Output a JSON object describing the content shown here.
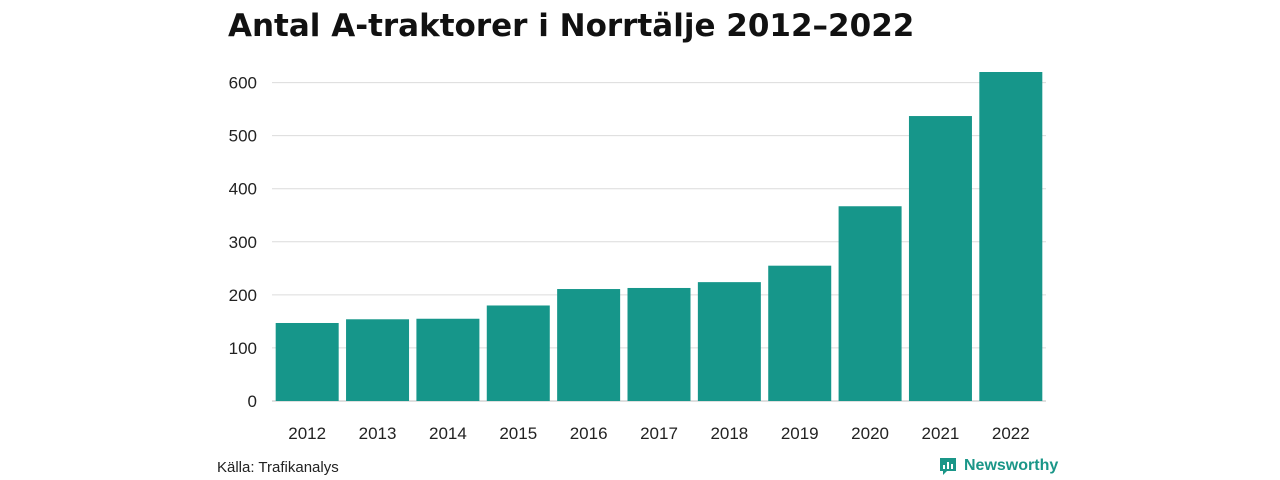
{
  "title": "Antal A-traktorer i Norrtälje 2012–2022",
  "source": "Källa: Trafikanalys",
  "brand": {
    "name": "Newsworthy",
    "icon": "newsworthy-logo-icon",
    "color": "#1a9688"
  },
  "colors": {
    "bar": "#16968a",
    "grid": "#dcdcdc",
    "baseline": "#bfbfbf"
  },
  "chart_data": {
    "type": "bar",
    "title": "Antal A-traktorer i Norrtälje 2012–2022",
    "xlabel": "",
    "ylabel": "",
    "categories": [
      "2012",
      "2013",
      "2014",
      "2015",
      "2016",
      "2017",
      "2018",
      "2019",
      "2020",
      "2021",
      "2022"
    ],
    "values": [
      147,
      154,
      155,
      180,
      211,
      213,
      224,
      255,
      367,
      537,
      620
    ],
    "ylim": [
      0,
      620
    ],
    "yticks": [
      0,
      100,
      200,
      300,
      400,
      500,
      600
    ],
    "grid": true,
    "legend": "none"
  }
}
